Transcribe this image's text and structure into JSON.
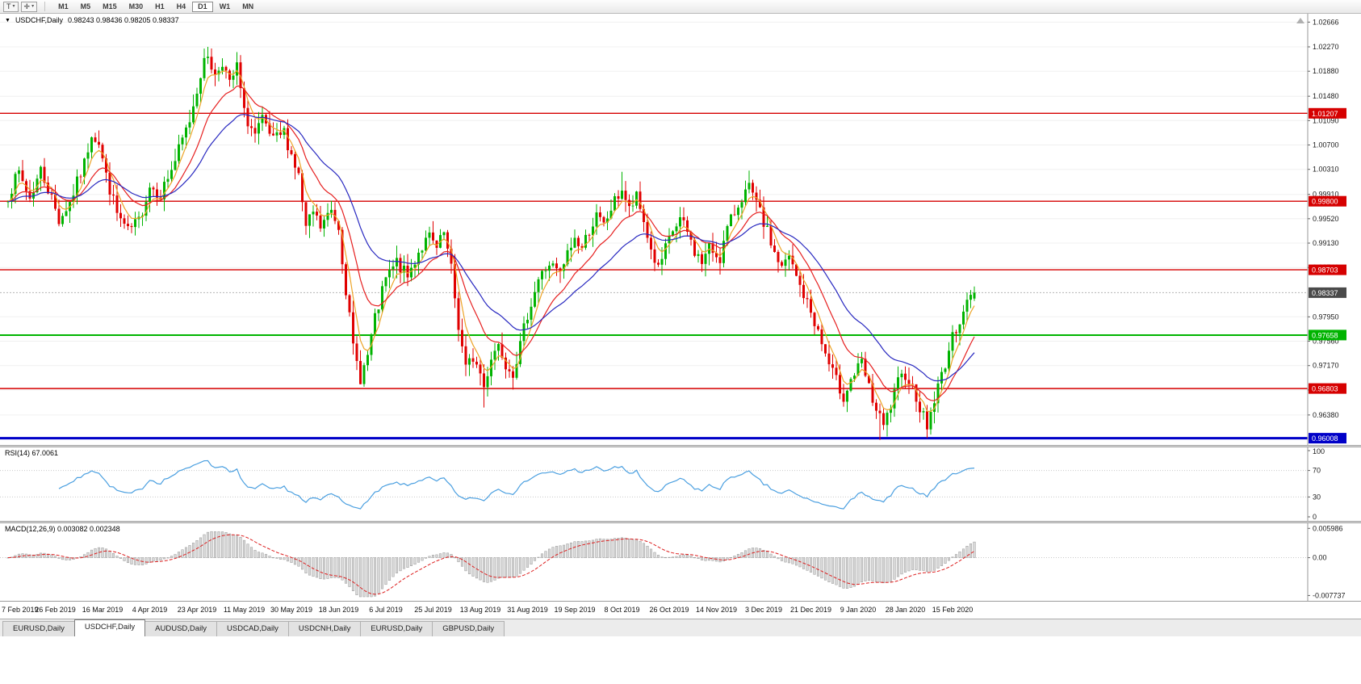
{
  "icons": {
    "template_label": "T",
    "caret": "▾",
    "crosshair": "✛",
    "chart_menu": "▼"
  },
  "toolbar": {
    "template_button_label": "T",
    "timeframes": [
      "M1",
      "M5",
      "M15",
      "M30",
      "H1",
      "H4",
      "D1",
      "W1",
      "MN"
    ],
    "active_timeframe": "D1"
  },
  "main_chart": {
    "symbol": "USDCHF,Daily",
    "ohlc_text": "0.98243 0.98436 0.98205 0.98337",
    "axis_ticks": [
      "1.02666",
      "1.02270",
      "1.01880",
      "1.01480",
      "1.01090",
      "1.00700",
      "1.00310",
      "0.99910",
      "0.99520",
      "0.99130",
      "0.98740",
      "0.97950",
      "0.97560",
      "0.97170",
      "0.96780",
      "0.96380"
    ]
  },
  "rsi_panel": {
    "label": "RSI(14) 67.0061",
    "levels": [
      "100",
      "70",
      "30",
      "0"
    ],
    "line_color": "#4a9fe0"
  },
  "macd_panel": {
    "label": "MACD(12,26,9) 0.003082 0.002348",
    "levels": [
      "0.005986",
      "0.00",
      "-0.007737"
    ],
    "range": [
      -0.008,
      0.0062
    ]
  },
  "x_axis": {
    "labels": [
      "7 Feb 2019",
      "26 Feb 2019",
      "16 Mar 2019",
      "4 Apr 2019",
      "23 Apr 2019",
      "11 May 2019",
      "30 May 2019",
      "18 Jun 2019",
      "6 Jul 2019",
      "25 Jul 2019",
      "13 Aug 2019",
      "31 Aug 2019",
      "19 Sep 2019",
      "8 Oct 2019",
      "26 Oct 2019",
      "14 Nov 2019",
      "3 Dec 2019",
      "21 Dec 2019",
      "9 Jan 2020",
      "28 Jan 2020",
      "15 Feb 2020"
    ],
    "candles_per_label": 13
  },
  "tabs": {
    "items": [
      "EURUSD,Daily",
      "USDCHF,Daily",
      "AUDUSD,Daily",
      "USDCAD,Daily",
      "USDCNH,Daily",
      "EURUSD,Daily",
      "GBPUSD,Daily"
    ],
    "active_index": 1
  },
  "chart_data": {
    "type": "candlestick",
    "symbol": "USDCHF",
    "timeframe": "Daily",
    "candles_count": 267,
    "seed": 7,
    "noise": 0.0011,
    "wick": 0.002,
    "first_x": 10,
    "candle_spacing": 4.5,
    "candle_width": 3,
    "y_range": [
      0.959,
      1.028
    ],
    "colors": {
      "up": "#00b300",
      "down": "#e00000",
      "grid": "#f0f0f0",
      "axis": "#999999"
    },
    "last_candle": {
      "open": 0.98243,
      "high": 0.98436,
      "low": 0.98205,
      "close": 0.98337
    },
    "current_price": {
      "value": 0.98337,
      "label": "0.98337",
      "bg": "#4a4a4a"
    },
    "horizontal_lines": [
      {
        "name": "resistance-line-1",
        "price": 1.01207,
        "label": "1.01207",
        "color": "#d60000",
        "width": 1.4
      },
      {
        "name": "resistance-line-2",
        "price": 0.998,
        "label": "0.99800",
        "color": "#d60000",
        "width": 1.4
      },
      {
        "name": "resistance-line-3",
        "price": 0.98703,
        "label": "0.98703",
        "color": "#d60000",
        "width": 1.4
      },
      {
        "name": "support-line-green",
        "price": 0.97658,
        "label": "0.97658",
        "color": "#00b400",
        "width": 2
      },
      {
        "name": "support-line-4",
        "price": 0.96803,
        "label": "0.96803",
        "color": "#d60000",
        "width": 1.4
      },
      {
        "name": "support-line-blue",
        "price": 0.96008,
        "label": "0.96008",
        "color": "#0000c8",
        "width": 3
      }
    ],
    "moving_averages": [
      {
        "name": "ma-fast-orange",
        "type": "ema",
        "period": 5,
        "color": "#eda428"
      },
      {
        "name": "ma-medium-red",
        "type": "ema",
        "period": 14,
        "color": "#e62020"
      },
      {
        "name": "ma-slow-blue",
        "type": "ema",
        "period": 30,
        "color": "#2828c0"
      }
    ],
    "indicators": {
      "rsi": {
        "period": 14,
        "current": 67.0061
      },
      "macd": {
        "fast": 12,
        "slow": 26,
        "signal": 9,
        "macd_value": 0.003082,
        "signal_value": 0.002348
      }
    },
    "price_anchors": [
      [
        0,
        0.999
      ],
      [
        3,
        1.0025
      ],
      [
        6,
        0.9985
      ],
      [
        9,
        1.003
      ],
      [
        12,
        0.9985
      ],
      [
        14,
        0.995
      ],
      [
        17,
        0.9978
      ],
      [
        21,
        1.004
      ],
      [
        23,
        1.009
      ],
      [
        25,
        1.0075
      ],
      [
        27,
        1.002
      ],
      [
        30,
        0.996
      ],
      [
        33,
        0.993
      ],
      [
        36,
        0.9948
      ],
      [
        39,
        1.0005
      ],
      [
        42,
        0.9992
      ],
      [
        46,
        1.0045
      ],
      [
        50,
        1.011
      ],
      [
        53,
        1.0185
      ],
      [
        55,
        1.0215
      ],
      [
        57,
        1.018
      ],
      [
        59,
        1.0205
      ],
      [
        61,
        1.0165
      ],
      [
        63,
        1.0195
      ],
      [
        65,
        1.012
      ],
      [
        68,
        1.0085
      ],
      [
        70,
        1.0108
      ],
      [
        73,
        1.0075
      ],
      [
        76,
        1.009
      ],
      [
        78,
        1.0055
      ],
      [
        80,
        1.002
      ],
      [
        82,
        0.9935
      ],
      [
        84,
        0.9962
      ],
      [
        86,
        0.9938
      ],
      [
        89,
        0.9965
      ],
      [
        91,
        0.994
      ],
      [
        93,
        0.984
      ],
      [
        95,
        0.9745
      ],
      [
        97,
        0.9698
      ],
      [
        99,
        0.9732
      ],
      [
        101,
        0.979
      ],
      [
        104,
        0.9855
      ],
      [
        107,
        0.9882
      ],
      [
        110,
        0.9858
      ],
      [
        113,
        0.99
      ],
      [
        116,
        0.9922
      ],
      [
        118,
        0.9902
      ],
      [
        120,
        0.9928
      ],
      [
        122,
        0.987
      ],
      [
        124,
        0.978
      ],
      [
        126,
        0.9712
      ],
      [
        128,
        0.973
      ],
      [
        130,
        0.9705
      ],
      [
        131,
        0.9682
      ],
      [
        133,
        0.9732
      ],
      [
        135,
        0.9752
      ],
      [
        137,
        0.9722
      ],
      [
        139,
        0.9708
      ],
      [
        141,
        0.9748
      ],
      [
        143,
        0.98
      ],
      [
        146,
        0.9855
      ],
      [
        149,
        0.988
      ],
      [
        152,
        0.9862
      ],
      [
        154,
        0.9895
      ],
      [
        156,
        0.992
      ],
      [
        158,
        0.9905
      ],
      [
        160,
        0.9935
      ],
      [
        162,
        0.9955
      ],
      [
        164,
        0.994
      ],
      [
        166,
        0.9968
      ],
      [
        169,
        1.0
      ],
      [
        171,
        0.9965
      ],
      [
        173,
        0.9985
      ],
      [
        175,
        0.9948
      ],
      [
        177,
        0.9902
      ],
      [
        179,
        0.987
      ],
      [
        181,
        0.9902
      ],
      [
        183,
        0.9932
      ],
      [
        185,
        0.995
      ],
      [
        187,
        0.993
      ],
      [
        189,
        0.99
      ],
      [
        191,
        0.9882
      ],
      [
        193,
        0.9905
      ],
      [
        196,
        0.989
      ],
      [
        198,
        0.9935
      ],
      [
        200,
        0.9962
      ],
      [
        202,
        0.9988
      ],
      [
        204,
        1.0
      ],
      [
        206,
        0.9975
      ],
      [
        209,
        0.993
      ],
      [
        211,
        0.9898
      ],
      [
        213,
        0.9872
      ],
      [
        215,
        0.989
      ],
      [
        217,
        0.9858
      ],
      [
        219,
        0.983
      ],
      [
        222,
        0.9788
      ],
      [
        224,
        0.9752
      ],
      [
        226,
        0.9718
      ],
      [
        228,
        0.9692
      ],
      [
        230,
        0.9668
      ],
      [
        232,
        0.9695
      ],
      [
        235,
        0.972
      ],
      [
        237,
        0.968
      ],
      [
        239,
        0.9645
      ],
      [
        241,
        0.9618
      ],
      [
        243,
        0.9652
      ],
      [
        245,
        0.9688
      ],
      [
        247,
        0.9705
      ],
      [
        248,
        0.9695
      ],
      [
        250,
        0.9668
      ],
      [
        252,
        0.9635
      ],
      [
        253,
        0.962
      ],
      [
        255,
        0.9662
      ],
      [
        257,
        0.9702
      ],
      [
        259,
        0.9742
      ],
      [
        261,
        0.9778
      ],
      [
        263,
        0.9806
      ],
      [
        265,
        0.9826
      ],
      [
        266,
        0.98337
      ]
    ],
    "wick_overrides": [
      {
        "i": 55,
        "h": 1.0227
      },
      {
        "i": 131,
        "l": 0.965
      },
      {
        "i": 169,
        "h": 1.0027
      },
      {
        "i": 204,
        "h": 1.0016
      },
      {
        "i": 240,
        "l": 0.9598
      },
      {
        "i": 253,
        "l": 0.9601
      }
    ]
  }
}
